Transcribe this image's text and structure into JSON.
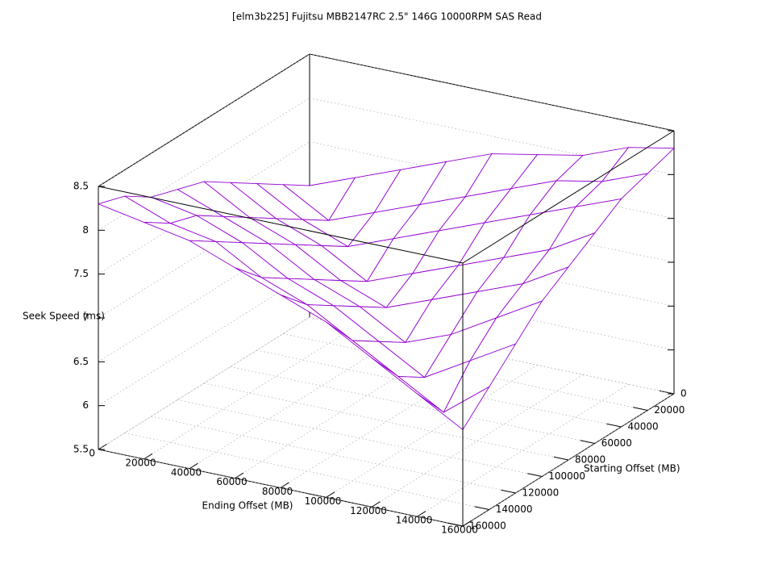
{
  "chart_data": {
    "type": "surface",
    "title": "[elm3b225] Fujitsu MBB2147RC 2.5\" 146G 10000RPM SAS Read",
    "xlabel": "Ending Offset (MB)",
    "ylabel": "Starting Offset (MB)",
    "zlabel": "Seek Speed (ms)",
    "x": [
      0,
      20000,
      40000,
      60000,
      80000,
      100000,
      120000,
      140000,
      160000
    ],
    "y": [
      0,
      20000,
      40000,
      60000,
      80000,
      100000,
      120000,
      140000,
      160000
    ],
    "z": [
      [
        7.0,
        7.2,
        7.4,
        7.6,
        7.8,
        7.9,
        8.0,
        8.2,
        8.3
      ],
      [
        7.2,
        6.9,
        7.1,
        7.3,
        7.5,
        7.7,
        7.9,
        8.0,
        8.2
      ],
      [
        7.4,
        7.1,
        6.9,
        7.1,
        7.3,
        7.5,
        7.7,
        7.9,
        8.1
      ],
      [
        7.6,
        7.3,
        7.1,
        6.8,
        7.0,
        7.2,
        7.4,
        7.6,
        7.9
      ],
      [
        7.8,
        7.5,
        7.3,
        7.0,
        6.8,
        7.0,
        7.2,
        7.4,
        7.7
      ],
      [
        7.9,
        7.7,
        7.5,
        7.2,
        7.0,
        6.7,
        6.9,
        7.2,
        7.5
      ],
      [
        8.0,
        7.9,
        7.7,
        7.4,
        7.2,
        6.9,
        6.6,
        6.9,
        7.2
      ],
      [
        8.2,
        8.0,
        7.9,
        7.6,
        7.4,
        7.1,
        6.8,
        6.5,
        6.9
      ],
      [
        8.3,
        8.2,
        8.1,
        7.9,
        7.7,
        7.5,
        7.2,
        6.9,
        6.6
      ]
    ],
    "color": "#9400d3",
    "back_color": "#009e73",
    "xlim": [
      0,
      160000
    ],
    "ylim": [
      0,
      160000
    ],
    "zlim": [
      5.5,
      8.5
    ],
    "xticks": [
      0,
      20000,
      40000,
      60000,
      80000,
      100000,
      120000,
      140000,
      160000
    ],
    "yticks": [
      0,
      20000,
      40000,
      60000,
      80000,
      100000,
      120000,
      140000,
      160000
    ],
    "zticks": [
      5.5,
      6,
      6.5,
      7,
      7.5,
      8,
      8.5
    ],
    "grid": true
  }
}
